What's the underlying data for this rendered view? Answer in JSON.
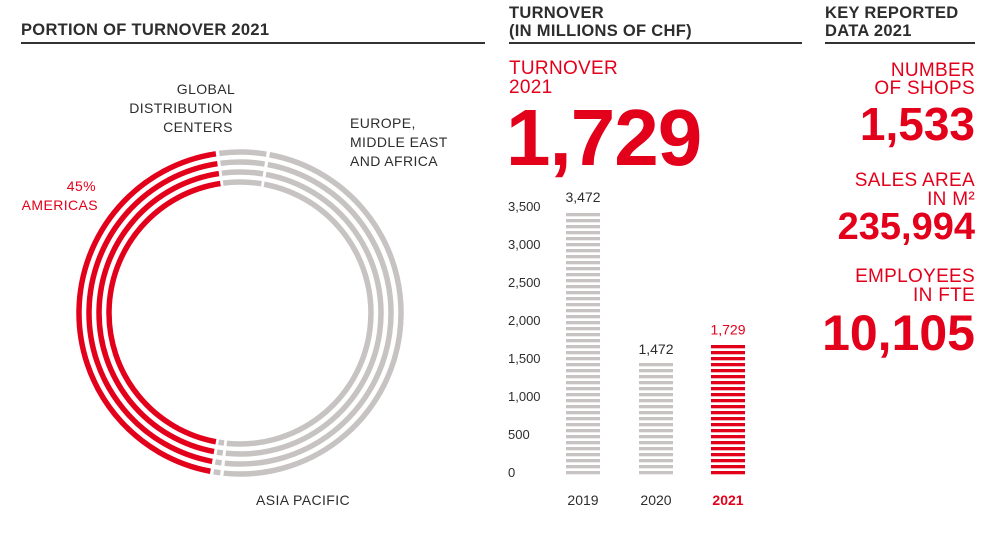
{
  "panels": {
    "portion": {
      "title": "PORTION OF TURNOVER 2021"
    },
    "turnover": {
      "title_line1": "TURNOVER",
      "title_line2": "(IN MILLIONS OF CHF)",
      "highlight_label_line1": "TURNOVER",
      "highlight_label_line2": "2021",
      "highlight_value": "1,729"
    },
    "key": {
      "title_line1": "KEY REPORTED",
      "title_line2": "DATA 2021",
      "metrics": [
        {
          "label_line1": "NUMBER",
          "label_line2": "OF SHOPS",
          "value": "1,533"
        },
        {
          "label_line1": "SALES AREA",
          "label_line2": "IN M²",
          "value": "235,994"
        },
        {
          "label_line1": "EMPLOYEES",
          "label_line2": "IN FTE",
          "value": "10,105"
        }
      ]
    }
  },
  "colors": {
    "accent": "#e3001b",
    "neutral": "#c7c3c3",
    "text": "#2d2d2d"
  },
  "chart_data": [
    {
      "type": "pie",
      "title": "PORTION OF TURNOVER 2021",
      "slices": [
        {
          "name": "AMERICAS",
          "value": 45,
          "value_label": "45%",
          "highlight": true
        },
        {
          "name": "ASIA PACIFIC",
          "value": 1
        },
        {
          "name": "EUROPE, MIDDLE EAST AND AFRICA",
          "value": 49
        },
        {
          "name": "GLOBAL DISTRIBUTION CENTERS",
          "value": 5
        }
      ],
      "labels": {
        "gdc": [
          "GLOBAL",
          "DISTRIBUTION",
          "CENTERS"
        ],
        "emea": [
          "EUROPE,",
          "MIDDLE EAST",
          "AND AFRICA"
        ],
        "americas_pct": "45%",
        "americas": "AMERICAS",
        "apac": "ASIA PACIFIC"
      }
    },
    {
      "type": "bar",
      "title": "TURNOVER (IN MILLIONS OF CHF)",
      "categories": [
        "2019",
        "2020",
        "2021"
      ],
      "values": [
        3472,
        1472,
        1729
      ],
      "value_labels": [
        "3,472",
        "1,472",
        "1,729"
      ],
      "highlight": [
        false,
        false,
        true
      ],
      "ylim": [
        0,
        3500
      ],
      "yticks": [
        "0",
        "500",
        "1,000",
        "1,500",
        "2,000",
        "2,500",
        "3,000",
        "3,500"
      ],
      "ytick_values": [
        0,
        500,
        1000,
        1500,
        2000,
        2500,
        3000,
        3500
      ],
      "grid": false
    }
  ]
}
